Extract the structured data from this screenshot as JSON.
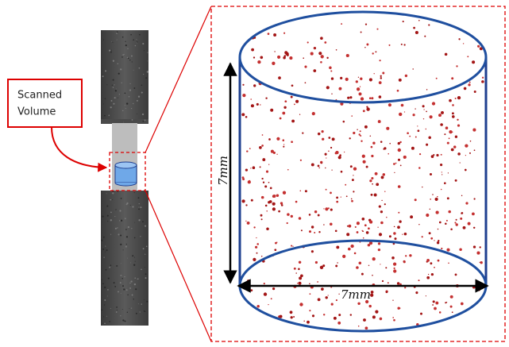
{
  "callout": {
    "lines": [
      "Scanned",
      "Volume"
    ]
  },
  "dimensions": {
    "height_label": "7mm",
    "width_label": "7mm"
  }
}
